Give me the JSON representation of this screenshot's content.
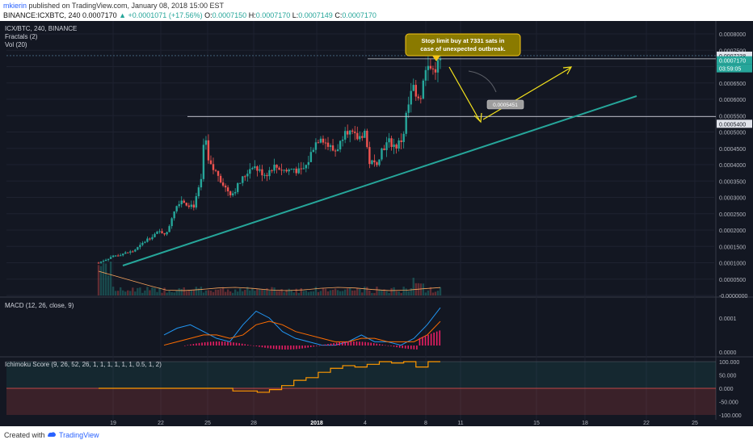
{
  "header": {
    "author": "mkierin",
    "publish_text": "published on TradingView.com, January 08, 2018 15:00 EST",
    "symbol_line": "BINANCE:ICXBTC, 240",
    "last_price": "0.0007170",
    "change": "▲ +0.0001071 (+17.56%)",
    "open_label": "O:",
    "open": "0.0007150",
    "high_label": "H:",
    "high": "0.0007170",
    "low_label": "L:",
    "low": "0.0007149",
    "close_label": "C:",
    "close": "0.0007170"
  },
  "legend": {
    "symbol": "ICX/BTC, 240, BINANCE",
    "fractals": "Fractals (2)",
    "vol": "Vol (20)",
    "macd": "MACD (12, 26, close, 9)",
    "ichimoku": "Ichimoku Score (9, 26, 52, 26, 1, 1, 1, 1, 1, 1, 0.5, 1, 2)"
  },
  "annotation": {
    "line1": "Stop limit buy at 7331 sats in",
    "line2": "case of unexpected outbreak.",
    "target_label": "0.0005451"
  },
  "price_badges": {
    "resistance": "0.0007238",
    "last": "0.0007170",
    "countdown": "03:59:05",
    "support": "0.0005400"
  },
  "footer": {
    "created_with": "Created with",
    "brand": "TradingView"
  },
  "colors": {
    "up": "#26a69a",
    "down": "#ef5350",
    "trendline": "#26a69a",
    "arrow": "#f5e31c",
    "macd": "#2196f3",
    "signal": "#ff6d00",
    "hist": "#e91e63",
    "score": "#ff9800"
  },
  "chart_data": [
    {
      "type": "candlestick",
      "title": "ICX/BTC, 240, BINANCE",
      "x_ticks": [
        "19",
        "22",
        "25",
        "28",
        "2018",
        "4",
        "8",
        "11",
        "15",
        "18",
        "22",
        "25"
      ],
      "y_ticks": [
        "0.0008000",
        "0.0007500",
        "0.0007000",
        "0.0006500",
        "0.0006000",
        "0.0005500",
        "0.0005000",
        "0.0004500",
        "0.0004000",
        "0.0003500",
        "0.0003000",
        "0.0002500",
        "0.0002000",
        "0.0001500",
        "0.0001000",
        "0.0000500",
        "-0.0000000"
      ],
      "ylim": [
        0.0,
        0.00081
      ],
      "close_path": [
        [
          0.0,
          0.0001
        ],
        [
          0.02,
          0.00011
        ],
        [
          0.04,
          0.00012
        ],
        [
          0.06,
          0.000125
        ],
        [
          0.08,
          0.00013
        ],
        [
          0.1,
          0.000135
        ],
        [
          0.12,
          0.00015
        ],
        [
          0.14,
          0.00017
        ],
        [
          0.16,
          0.000185
        ],
        [
          0.18,
          0.000195
        ],
        [
          0.2,
          0.00019
        ],
        [
          0.22,
          0.00026
        ],
        [
          0.24,
          0.000295
        ],
        [
          0.26,
          0.00028
        ],
        [
          0.28,
          0.000275
        ],
        [
          0.3,
          0.00035
        ],
        [
          0.31,
          0.0005
        ],
        [
          0.32,
          0.00041
        ],
        [
          0.33,
          0.00039
        ],
        [
          0.35,
          0.00037
        ],
        [
          0.37,
          0.00033
        ],
        [
          0.39,
          0.00031
        ],
        [
          0.41,
          0.00034
        ],
        [
          0.43,
          0.00037
        ],
        [
          0.45,
          0.0004
        ],
        [
          0.47,
          0.00038
        ],
        [
          0.49,
          0.00037
        ],
        [
          0.51,
          0.000395
        ],
        [
          0.53,
          0.00039
        ],
        [
          0.55,
          0.00038
        ],
        [
          0.57,
          0.00039
        ],
        [
          0.59,
          0.000375
        ],
        [
          0.61,
          0.0004
        ],
        [
          0.63,
          0.00046
        ],
        [
          0.65,
          0.00049
        ],
        [
          0.67,
          0.00046
        ],
        [
          0.69,
          0.00044
        ],
        [
          0.71,
          0.00047
        ],
        [
          0.72,
          0.00052
        ],
        [
          0.74,
          0.00049
        ],
        [
          0.76,
          0.00048
        ],
        [
          0.78,
          0.000505
        ],
        [
          0.79,
          0.00041
        ],
        [
          0.81,
          0.0004
        ],
        [
          0.83,
          0.00045
        ],
        [
          0.85,
          0.00047
        ],
        [
          0.87,
          0.000455
        ],
        [
          0.89,
          0.00048
        ],
        [
          0.9,
          0.00055
        ],
        [
          0.92,
          0.00064
        ],
        [
          0.94,
          0.0006
        ],
        [
          0.96,
          0.0007
        ],
        [
          0.98,
          0.00069
        ],
        [
          1.0,
          0.000717
        ]
      ],
      "resistance_level": 0.0007238,
      "support_level": 0.00054,
      "target_level": 0.0005451
    },
    {
      "type": "line",
      "title": "MACD (12, 26, close, 9)",
      "y_ticks": [
        "0.0001",
        "0.0000"
      ],
      "series": [
        {
          "values": [
            5e-05,
            7e-05,
            8e-05,
            6e-05,
            4e-05,
            3e-05,
            8e-05,
            0.00012,
            0.0001,
            6e-05,
            4e-05,
            3e-05,
            2e-05,
            2e-05,
            3e-05,
            5e-05,
            3e-05,
            3e-05,
            2e-05,
            4e-05,
            8e-05,
            0.00013
          ]
        },
        {
          "values": [
            2e-05,
            3e-05,
            4e-05,
            5e-05,
            5e-05,
            4e-05,
            5e-05,
            8e-05,
            9e-05,
            8e-05,
            6e-05,
            5e-05,
            4e-05,
            3e-05,
            3e-05,
            4e-05,
            4e-05,
            3e-05,
            3e-05,
            3e-05,
            5e-05,
            9e-05
          ]
        }
      ]
    },
    {
      "type": "line",
      "title": "Ichimoku Score (9, 26, 52, 26, 1, 1, 1, 1, 1, 1, 0.5, 1, 2)",
      "y_ticks": [
        "100.000",
        "50.000",
        "0.000",
        "-50.000",
        "-100.000"
      ],
      "ylim": [
        -100,
        100
      ],
      "series": [
        {
          "values": [
            0,
            0,
            0,
            0,
            0,
            0,
            0,
            0,
            0,
            0,
            0,
            -10,
            -10,
            -15,
            -5,
            10,
            30,
            40,
            60,
            75,
            85,
            80,
            90,
            100,
            95,
            100,
            80,
            100,
            100
          ]
        }
      ]
    }
  ]
}
